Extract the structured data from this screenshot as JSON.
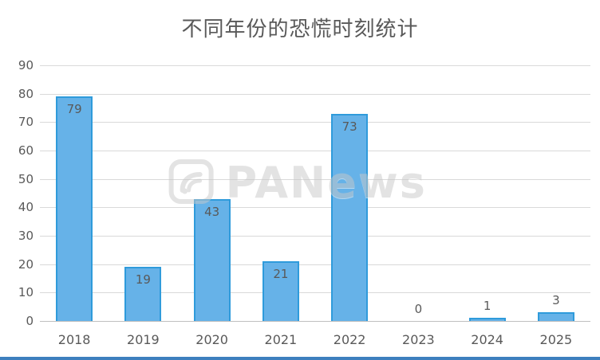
{
  "chart_data": {
    "type": "bar",
    "title": "不同年份的恐慌时刻统计",
    "categories": [
      "2018",
      "2019",
      "2020",
      "2021",
      "2022",
      "2023",
      "2024",
      "2025"
    ],
    "values": [
      79,
      19,
      43,
      21,
      73,
      0,
      1,
      3
    ],
    "xlabel": "",
    "ylabel": "",
    "ylim": [
      0,
      90
    ],
    "ytick_step": 10,
    "grid": true,
    "legend": false,
    "colors": {
      "bar_fill": "#66B2E8",
      "bar_stroke": "#2F9BDB",
      "text": "#595959",
      "gridline": "#D9D9D9",
      "axis_line": "#BFBFBF",
      "accent_bottom_bar": "#3D7FBE"
    }
  },
  "watermark": {
    "text": "PANews"
  }
}
